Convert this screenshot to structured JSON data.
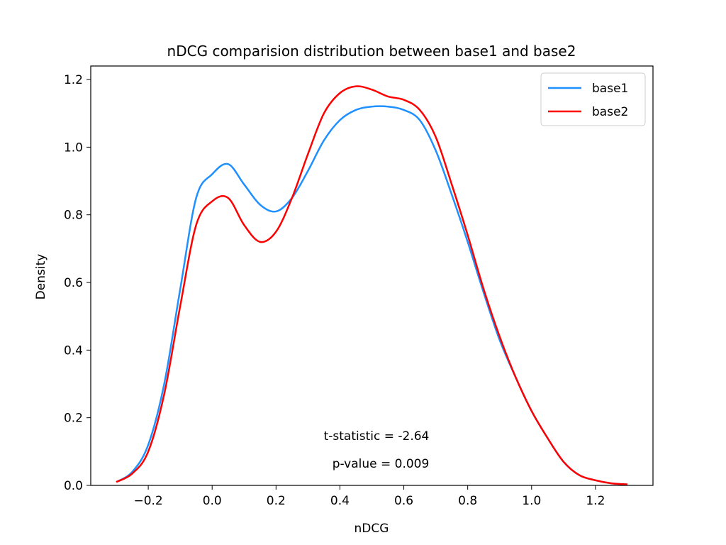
{
  "chart_data": {
    "type": "line",
    "title": "nDCG comparision distribution between base1 and base2",
    "xlabel": "nDCG",
    "ylabel": "Density",
    "xlim": [
      -0.38,
      1.38
    ],
    "ylim": [
      0.0,
      1.24
    ],
    "xticks": [
      -0.2,
      0.0,
      0.2,
      0.4,
      0.6,
      0.8,
      1.0,
      1.2
    ],
    "xtick_labels": [
      "−0.2",
      "0.0",
      "0.2",
      "0.4",
      "0.6",
      "0.8",
      "1.0",
      "1.2"
    ],
    "yticks": [
      0.0,
      0.2,
      0.4,
      0.6,
      0.8,
      1.0,
      1.2
    ],
    "ytick_labels": [
      "0.0",
      "0.2",
      "0.4",
      "0.6",
      "0.8",
      "1.0",
      "1.2"
    ],
    "grid": false,
    "legend_position": "top-right",
    "series": [
      {
        "name": "base1",
        "color": "#1e90ff",
        "x": [
          -0.3,
          -0.25,
          -0.2,
          -0.15,
          -0.1,
          -0.05,
          0.0,
          0.05,
          0.1,
          0.15,
          0.2,
          0.25,
          0.3,
          0.35,
          0.4,
          0.45,
          0.5,
          0.55,
          0.6,
          0.65,
          0.7,
          0.75,
          0.8,
          0.85,
          0.9,
          0.95,
          1.0,
          1.05,
          1.1,
          1.15,
          1.2,
          1.25,
          1.3
        ],
        "y": [
          0.01,
          0.04,
          0.12,
          0.3,
          0.58,
          0.85,
          0.92,
          0.95,
          0.89,
          0.83,
          0.81,
          0.85,
          0.93,
          1.02,
          1.08,
          1.11,
          1.12,
          1.12,
          1.11,
          1.08,
          0.99,
          0.86,
          0.72,
          0.57,
          0.43,
          0.32,
          0.22,
          0.14,
          0.07,
          0.03,
          0.015,
          0.006,
          0.003
        ]
      },
      {
        "name": "base2",
        "color": "#ff0000",
        "x": [
          -0.3,
          -0.25,
          -0.2,
          -0.15,
          -0.1,
          -0.05,
          0.0,
          0.05,
          0.1,
          0.15,
          0.2,
          0.25,
          0.3,
          0.35,
          0.4,
          0.45,
          0.5,
          0.55,
          0.6,
          0.65,
          0.7,
          0.75,
          0.8,
          0.85,
          0.9,
          0.95,
          1.0,
          1.05,
          1.1,
          1.15,
          1.2,
          1.25,
          1.3
        ],
        "y": [
          0.01,
          0.035,
          0.1,
          0.27,
          0.53,
          0.77,
          0.84,
          0.85,
          0.77,
          0.72,
          0.75,
          0.85,
          0.98,
          1.1,
          1.16,
          1.18,
          1.17,
          1.15,
          1.14,
          1.11,
          1.03,
          0.89,
          0.74,
          0.58,
          0.44,
          0.32,
          0.22,
          0.14,
          0.07,
          0.03,
          0.015,
          0.006,
          0.003
        ]
      }
    ],
    "annotations": [
      {
        "text": "t-statistic = -2.64"
      },
      {
        "text": "p-value = 0.009"
      }
    ]
  }
}
